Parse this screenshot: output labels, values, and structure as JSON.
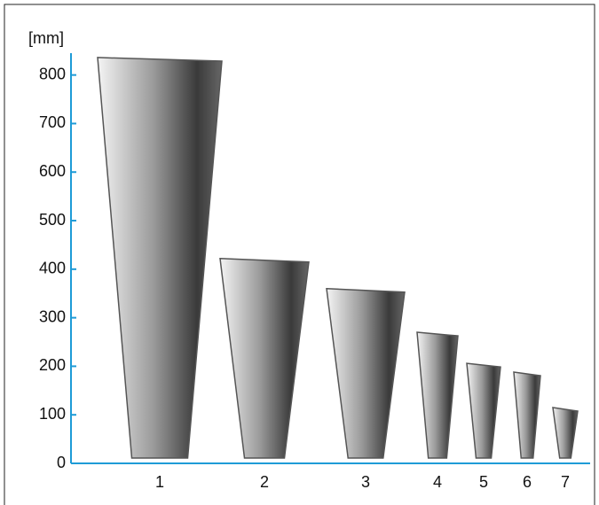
{
  "chart_data": {
    "type": "bar",
    "y_label": "[mm]",
    "categories": [
      "1",
      "2",
      "3",
      "4",
      "5",
      "6",
      "7"
    ],
    "values": [
      836,
      422,
      360,
      270,
      206,
      188,
      115
    ],
    "color": "#555555",
    "axis_color": "#1e9bd7",
    "ylim": [
      0,
      845
    ],
    "yticks": [
      0,
      100,
      200,
      300,
      400,
      500,
      600,
      700,
      800
    ]
  }
}
